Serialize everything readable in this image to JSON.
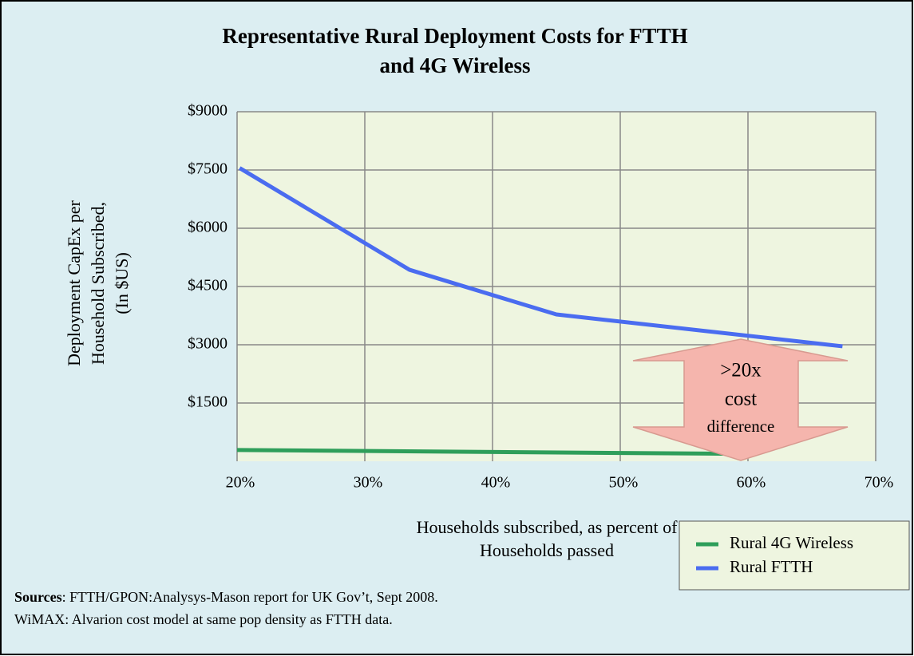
{
  "chart_data": {
    "type": "line",
    "title": [
      "Representative Rural Deployment Costs for FTTH",
      "and 4G Wireless"
    ],
    "y_label": [
      "Deployment CapEx per",
      "Household Subscribed,",
      "(In $US)"
    ],
    "x_label": [
      "Households subscribed, as percent of",
      "Households passed"
    ],
    "xlim": [
      20,
      70
    ],
    "xticks": [
      {
        "value": 20,
        "label": "20%"
      },
      {
        "value": 30,
        "label": "30%"
      },
      {
        "value": 40,
        "label": "40%"
      },
      {
        "value": 50,
        "label": "50%"
      },
      {
        "value": 60,
        "label": "60%"
      },
      {
        "value": 70,
        "label": "70%"
      }
    ],
    "ylim": [
      0,
      9000
    ],
    "yticks": [
      {
        "value": 1500,
        "label": "$1500"
      },
      {
        "value": 3000,
        "label": "$3000"
      },
      {
        "value": 4500,
        "label": "$4500"
      },
      {
        "value": 6000,
        "label": "$6000"
      },
      {
        "value": 7500,
        "label": "$7500"
      },
      {
        "value": 9000,
        "label": "$9000"
      }
    ],
    "grid": true,
    "legend": "bottom-right",
    "series": [
      {
        "name": "Rural 4G Wireless",
        "color": "#2e9e5a",
        "x": [
          20,
          59.7
        ],
        "values": [
          290,
          190
        ]
      },
      {
        "name": "Rural FTTH",
        "color": "#4a6cf0",
        "x": [
          20.2,
          33.5,
          45,
          67.4
        ],
        "values": [
          7550,
          4930,
          3780,
          2960
        ]
      }
    ],
    "annotation": [
      ">20x",
      "cost",
      "difference"
    ],
    "sources": {
      "label": "Sources",
      "lines": [
        ": FTTH/GPON:Analysys-Mason report for UK Gov’t, Sept 2008.",
        "WiMAX: Alvarion cost model at same pop density as FTTH data."
      ]
    }
  }
}
